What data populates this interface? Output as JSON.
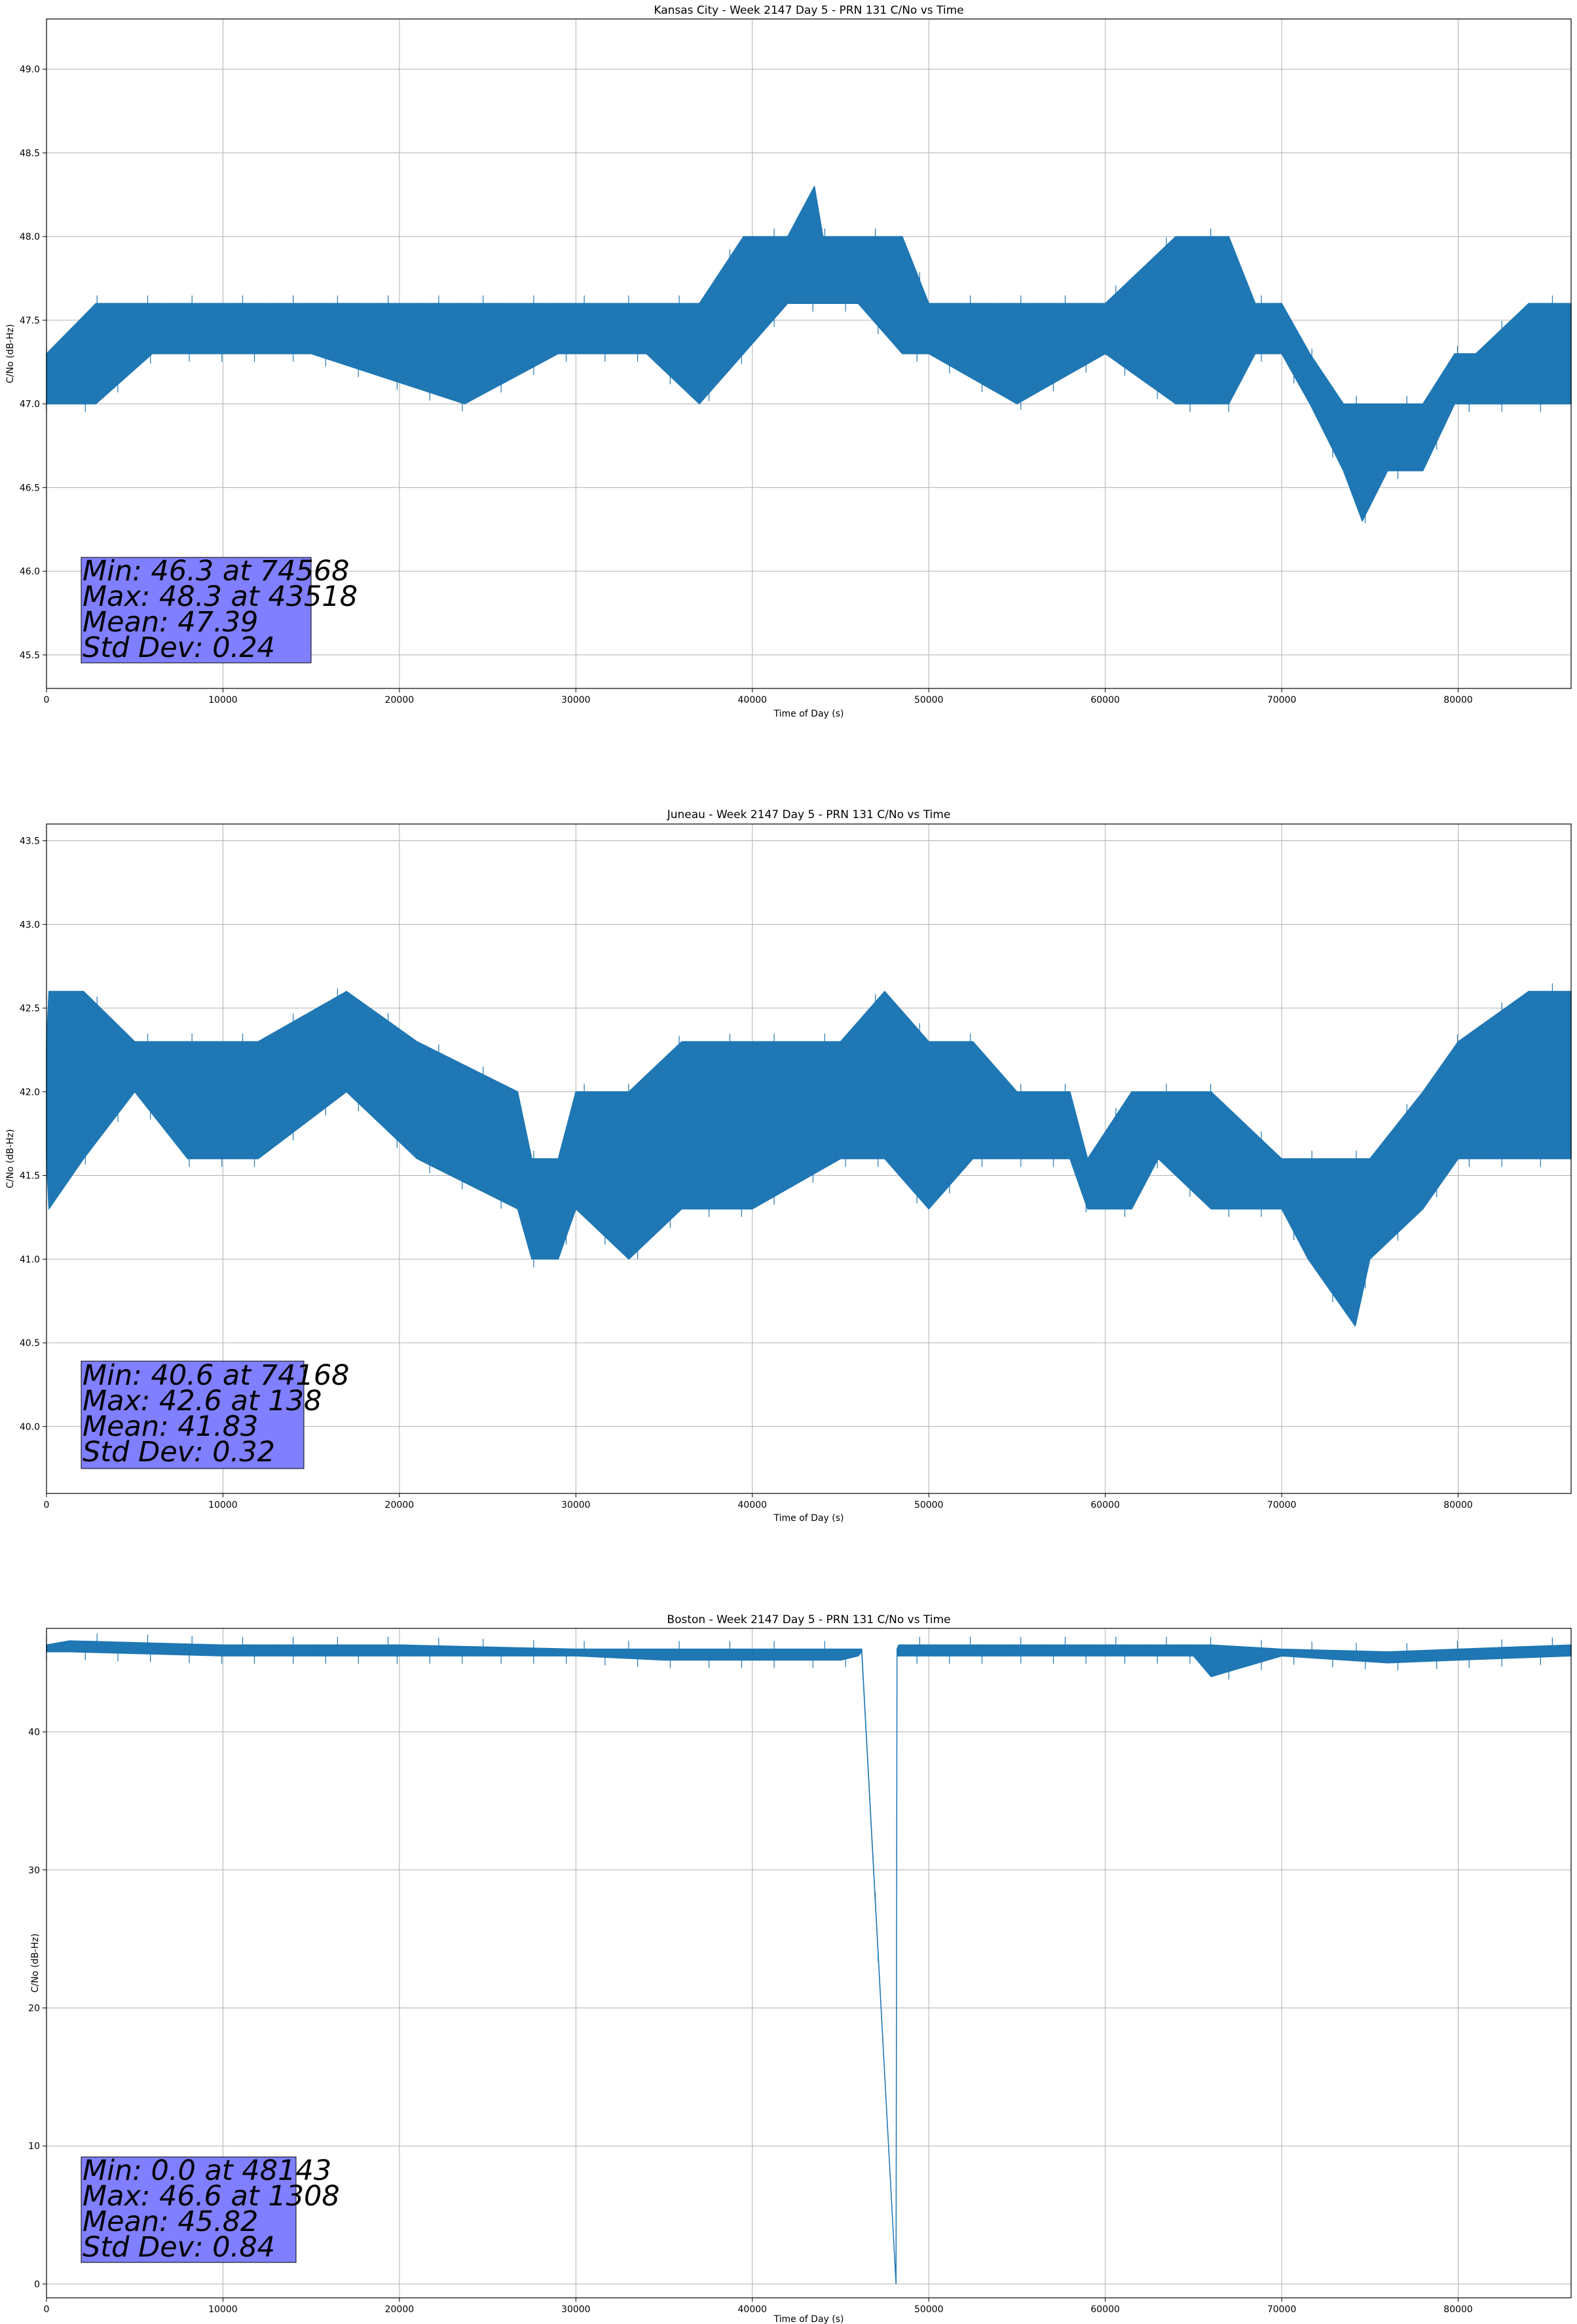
{
  "chart_data": [
    {
      "type": "line",
      "title": "Kansas City - Week 2147 Day 5 - PRN 131 C/No vs Time",
      "xlabel": "Time of Day (s)",
      "ylabel": "C/No (dB-Hz)",
      "xlim": [
        0,
        86400
      ],
      "ylim": [
        45.3,
        49.3
      ],
      "xticks": [
        0,
        10000,
        20000,
        30000,
        40000,
        50000,
        60000,
        70000,
        80000
      ],
      "xtick_labels": [
        "0",
        "10000",
        "20000",
        "30000",
        "40000",
        "50000",
        "60000",
        "70000",
        "80000"
      ],
      "yticks": [
        45.5,
        46.0,
        46.5,
        47.0,
        47.5,
        48.0,
        48.5,
        49.0
      ],
      "ytick_labels": [
        "45.5",
        "46.0",
        "46.5",
        "47.0",
        "47.5",
        "48.0",
        "48.5",
        "49.0"
      ],
      "grid": true,
      "line_color": "#1f77b4",
      "series": [
        {
          "x": [
            0,
            2800,
            6000,
            15000,
            23700,
            29000,
            34000,
            37000,
            39500,
            42000,
            43518,
            44000,
            46000,
            48500,
            50000,
            55000,
            60000,
            64000,
            67000,
            68500,
            70000,
            71600,
            73500,
            74568,
            76000,
            78000,
            79800,
            81000,
            84000,
            86400
          ],
          "low": [
            47.0,
            47.0,
            47.3,
            47.3,
            47.0,
            47.3,
            47.3,
            47.0,
            47.3,
            47.6,
            47.6,
            47.6,
            47.6,
            47.3,
            47.3,
            47.0,
            47.3,
            47.0,
            47.0,
            47.3,
            47.3,
            47.0,
            46.6,
            46.3,
            46.6,
            46.6,
            47.0,
            47.0,
            47.0,
            47.0
          ],
          "high": [
            47.3,
            47.6,
            47.6,
            47.6,
            47.6,
            47.6,
            47.6,
            47.6,
            48.0,
            48.0,
            48.3,
            48.0,
            48.0,
            48.0,
            47.6,
            47.6,
            47.6,
            48.0,
            48.0,
            47.6,
            47.6,
            47.3,
            47.0,
            47.0,
            47.0,
            47.0,
            47.3,
            47.3,
            47.6,
            47.6
          ]
        }
      ],
      "stats": {
        "min": "Min: 46.3 at 74568",
        "max": "Max: 48.3 at 43518",
        "mean": "Mean: 47.39",
        "std": "Std Dev: 0.24"
      },
      "stats_box_color": "#7f7fff"
    },
    {
      "type": "line",
      "title": "Juneau - Week 2147 Day 5 - PRN 131 C/No vs Time",
      "xlabel": "Time of Day (s)",
      "ylabel": "C/No (dB-Hz)",
      "xlim": [
        0,
        86400
      ],
      "ylim": [
        39.6,
        43.6
      ],
      "xticks": [
        0,
        10000,
        20000,
        30000,
        40000,
        50000,
        60000,
        70000,
        80000
      ],
      "xtick_labels": [
        "0",
        "10000",
        "20000",
        "30000",
        "40000",
        "50000",
        "60000",
        "70000",
        "80000"
      ],
      "yticks": [
        40.0,
        40.5,
        41.0,
        41.5,
        42.0,
        42.5,
        43.0,
        43.5
      ],
      "ytick_labels": [
        "40.0",
        "40.5",
        "41.0",
        "41.5",
        "42.0",
        "42.5",
        "43.0",
        "43.5"
      ],
      "grid": true,
      "line_color": "#1f77b4",
      "series": [
        {
          "x": [
            0,
            138,
            2100,
            5000,
            8000,
            12000,
            17000,
            21000,
            26700,
            27500,
            29000,
            30000,
            33000,
            36000,
            40000,
            45000,
            47500,
            50000,
            52500,
            55000,
            58000,
            59000,
            61500,
            63000,
            66000,
            70000,
            71500,
            74168,
            75000,
            78000,
            80000,
            84000,
            86400
          ],
          "low": [
            41.6,
            41.3,
            41.6,
            42.0,
            41.6,
            41.6,
            42.0,
            41.6,
            41.3,
            41.0,
            41.0,
            41.3,
            41.0,
            41.3,
            41.3,
            41.6,
            41.6,
            41.3,
            41.6,
            41.6,
            41.6,
            41.3,
            41.3,
            41.6,
            41.3,
            41.3,
            41.0,
            40.6,
            41.0,
            41.3,
            41.6,
            41.6,
            41.6
          ],
          "high": [
            42.3,
            42.6,
            42.6,
            42.3,
            42.3,
            42.3,
            42.6,
            42.3,
            42.0,
            41.6,
            41.6,
            42.0,
            42.0,
            42.3,
            42.3,
            42.3,
            42.6,
            42.3,
            42.3,
            42.0,
            42.0,
            41.6,
            42.0,
            42.0,
            42.0,
            41.6,
            41.6,
            41.6,
            41.6,
            42.0,
            42.3,
            42.6,
            42.6
          ]
        }
      ],
      "stats": {
        "min": "Min: 40.6 at 74168",
        "max": "Max: 42.6 at 138",
        "mean": "Mean: 41.83",
        "std": "Std Dev: 0.32"
      },
      "stats_box_color": "#7f7fff"
    },
    {
      "type": "line",
      "title": "Boston - Week 2147 Day 5 - PRN 131 C/No vs Time",
      "xlabel": "Time of Day (s)",
      "ylabel": "C/No (dB-Hz)",
      "xlim": [
        0,
        86400
      ],
      "ylim": [
        -1.0,
        47.5
      ],
      "xticks": [
        0,
        10000,
        20000,
        30000,
        40000,
        50000,
        60000,
        70000,
        80000
      ],
      "xtick_labels": [
        "0",
        "10000",
        "20000",
        "30000",
        "40000",
        "50000",
        "60000",
        "70000",
        "80000"
      ],
      "yticks": [
        0,
        10,
        20,
        30,
        40
      ],
      "ytick_labels": [
        "0",
        "10",
        "20",
        "30",
        "40"
      ],
      "grid": true,
      "line_color": "#1f77b4",
      "series": [
        {
          "x": [
            0,
            1308,
            10000,
            20000,
            30000,
            35000,
            40000,
            45000,
            46000,
            46200,
            48143,
            48200,
            48300,
            55000,
            60000,
            65000,
            66000,
            70000,
            76000,
            80000,
            86400
          ],
          "low": [
            45.8,
            45.8,
            45.5,
            45.5,
            45.5,
            45.2,
            45.2,
            45.2,
            45.5,
            45.8,
            0.0,
            45.5,
            45.5,
            45.5,
            45.5,
            45.5,
            44.0,
            45.5,
            45.0,
            45.2,
            45.5
          ],
          "high": [
            46.3,
            46.6,
            46.3,
            46.3,
            46.0,
            46.0,
            46.0,
            46.0,
            46.0,
            46.0,
            0.0,
            46.0,
            46.3,
            46.3,
            46.3,
            46.3,
            46.3,
            46.0,
            45.8,
            46.0,
            46.3
          ]
        }
      ],
      "stats": {
        "min": "Min: 0.0 at 48143",
        "max": "Max: 46.6 at 1308",
        "mean": "Mean: 45.82",
        "std": "Std Dev: 0.84"
      },
      "stats_box_color": "#7f7fff"
    }
  ]
}
